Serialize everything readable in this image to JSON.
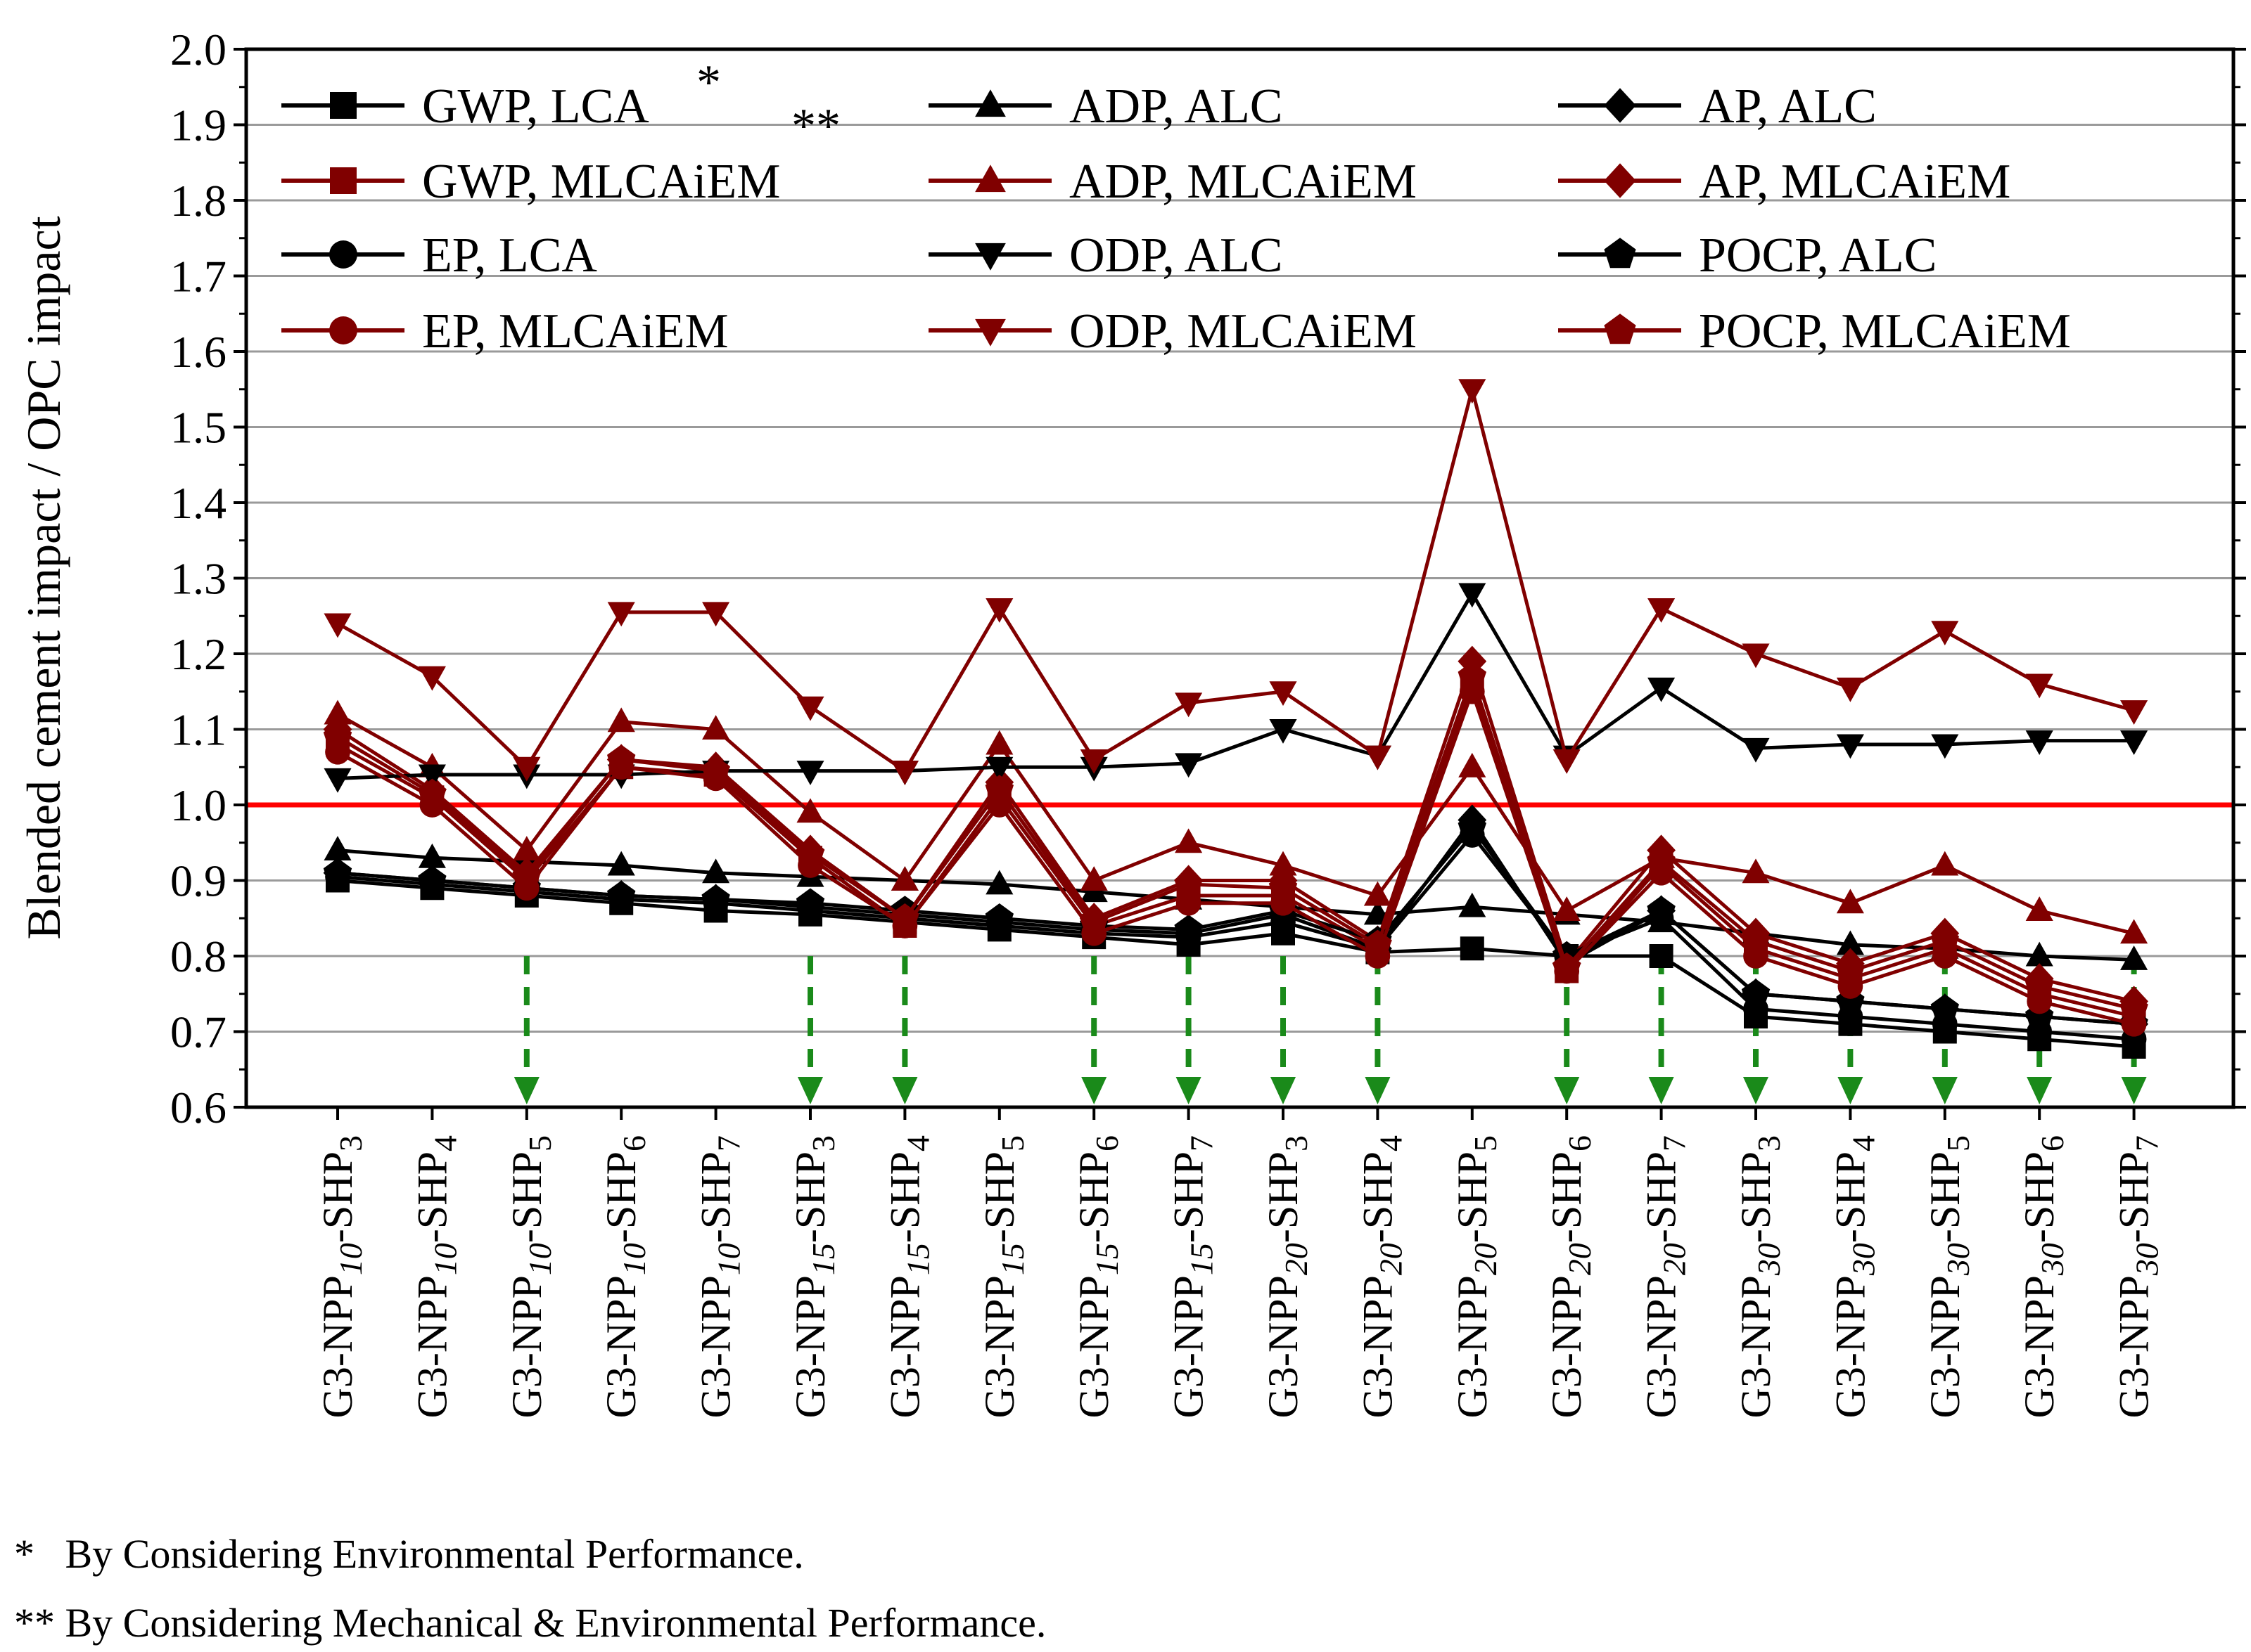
{
  "chart_data": {
    "type": "line",
    "ylabel": "Blended cement impact / OPC impact",
    "ylim": [
      0.6,
      2.0
    ],
    "ytick_step": 0.1,
    "grid": true,
    "reference_line": {
      "y": 1.0,
      "color": "#ff0000"
    },
    "categories": [
      {
        "pre": "G3-NPP",
        "sub1": "10",
        "mid": "-SHP",
        "sub2": "3"
      },
      {
        "pre": "G3-NPP",
        "sub1": "10",
        "mid": "-SHP",
        "sub2": "4"
      },
      {
        "pre": "G3-NPP",
        "sub1": "10",
        "mid": "-SHP",
        "sub2": "5"
      },
      {
        "pre": "G3-NPP",
        "sub1": "10",
        "mid": "-SHP",
        "sub2": "6"
      },
      {
        "pre": "G3-NPP",
        "sub1": "10",
        "mid": "-SHP",
        "sub2": "7"
      },
      {
        "pre": "G3-NPP",
        "sub1": "15",
        "mid": "-SHP",
        "sub2": "3"
      },
      {
        "pre": "G3-NPP",
        "sub1": "15",
        "mid": "-SHP",
        "sub2": "4"
      },
      {
        "pre": "G3-NPP",
        "sub1": "15",
        "mid": "-SHP",
        "sub2": "5"
      },
      {
        "pre": "G3-NPP",
        "sub1": "15",
        "mid": "-SHP",
        "sub2": "6"
      },
      {
        "pre": "G3-NPP",
        "sub1": "15",
        "mid": "-SHP",
        "sub2": "7"
      },
      {
        "pre": "G3-NPP",
        "sub1": "20",
        "mid": "-SHP",
        "sub2": "3"
      },
      {
        "pre": "G3-NPP",
        "sub1": "20",
        "mid": "-SHP",
        "sub2": "4"
      },
      {
        "pre": "G3-NPP",
        "sub1": "20",
        "mid": "-SHP",
        "sub2": "5"
      },
      {
        "pre": "G3-NPP",
        "sub1": "20",
        "mid": "-SHP",
        "sub2": "6"
      },
      {
        "pre": "G3-NPP",
        "sub1": "20",
        "mid": "-SHP",
        "sub2": "7"
      },
      {
        "pre": "G3-NPP",
        "sub1": "30",
        "mid": "-SHP",
        "sub2": "3"
      },
      {
        "pre": "G3-NPP",
        "sub1": "30",
        "mid": "-SHP",
        "sub2": "4"
      },
      {
        "pre": "G3-NPP",
        "sub1": "30",
        "mid": "-SHP",
        "sub2": "5"
      },
      {
        "pre": "G3-NPP",
        "sub1": "30",
        "mid": "-SHP",
        "sub2": "6"
      },
      {
        "pre": "G3-NPP",
        "sub1": "30",
        "mid": "-SHP",
        "sub2": "7"
      }
    ],
    "series": [
      {
        "name": "GWP, LCA",
        "color": "#000000",
        "marker": "square",
        "values": [
          0.9,
          0.89,
          0.88,
          0.87,
          0.86,
          0.855,
          0.845,
          0.835,
          0.825,
          0.815,
          0.83,
          0.805,
          0.81,
          0.8,
          0.8,
          0.72,
          0.71,
          0.7,
          0.69,
          0.68
        ]
      },
      {
        "name": "ADP, ALC",
        "color": "#000000",
        "marker": "triangle-up",
        "values": [
          0.94,
          0.93,
          0.925,
          0.92,
          0.91,
          0.905,
          0.9,
          0.895,
          0.885,
          0.875,
          0.865,
          0.855,
          0.865,
          0.855,
          0.845,
          0.83,
          0.815,
          0.81,
          0.8,
          0.795
        ]
      },
      {
        "name": "AP, ALC",
        "color": "#000000",
        "marker": "diamond",
        "values": [
          0.91,
          0.9,
          0.89,
          0.88,
          0.875,
          0.865,
          0.855,
          0.845,
          0.835,
          0.83,
          0.855,
          0.81,
          0.98,
          0.79,
          0.86,
          0.75,
          0.74,
          0.73,
          0.72,
          0.71
        ]
      },
      {
        "name": "GWP, MLCAiEM",
        "color": "#800000",
        "marker": "square",
        "values": [
          1.08,
          1.01,
          0.9,
          1.05,
          1.04,
          0.93,
          0.84,
          1.01,
          0.84,
          0.88,
          0.88,
          0.81,
          1.16,
          0.78,
          0.92,
          0.81,
          0.77,
          0.81,
          0.75,
          0.72
        ]
      },
      {
        "name": "ADP, MLCAiEM",
        "color": "#800000",
        "marker": "triangle-up",
        "values": [
          1.12,
          1.05,
          0.94,
          1.11,
          1.1,
          0.99,
          0.9,
          1.08,
          0.9,
          0.95,
          0.92,
          0.88,
          1.05,
          0.86,
          0.93,
          0.91,
          0.87,
          0.92,
          0.86,
          0.83
        ]
      },
      {
        "name": "AP, MLCAiEM",
        "color": "#800000",
        "marker": "diamond",
        "values": [
          1.1,
          1.02,
          0.91,
          1.06,
          1.05,
          0.94,
          0.85,
          1.03,
          0.85,
          0.9,
          0.9,
          0.82,
          1.19,
          0.79,
          0.94,
          0.83,
          0.79,
          0.83,
          0.77,
          0.74
        ]
      },
      {
        "name": "EP, LCA",
        "color": "#000000",
        "marker": "circle",
        "values": [
          0.905,
          0.895,
          0.885,
          0.875,
          0.87,
          0.86,
          0.85,
          0.84,
          0.83,
          0.825,
          0.845,
          0.81,
          0.96,
          0.8,
          0.85,
          0.73,
          0.72,
          0.71,
          0.7,
          0.69
        ]
      },
      {
        "name": "ODP, ALC",
        "color": "#000000",
        "marker": "triangle-down",
        "values": [
          1.035,
          1.04,
          1.04,
          1.04,
          1.045,
          1.045,
          1.045,
          1.05,
          1.05,
          1.055,
          1.1,
          1.065,
          1.28,
          1.065,
          1.155,
          1.075,
          1.08,
          1.08,
          1.085,
          1.085
        ]
      },
      {
        "name": "POCP, ALC",
        "color": "#000000",
        "marker": "pentagon",
        "values": [
          0.91,
          0.9,
          0.89,
          0.88,
          0.875,
          0.87,
          0.86,
          0.85,
          0.84,
          0.835,
          0.86,
          0.82,
          0.97,
          0.8,
          0.86,
          0.75,
          0.74,
          0.73,
          0.72,
          0.71
        ]
      },
      {
        "name": "EP, MLCAiEM",
        "color": "#800000",
        "marker": "circle",
        "values": [
          1.07,
          1.0,
          0.89,
          1.05,
          1.035,
          0.92,
          0.84,
          1.0,
          0.83,
          0.87,
          0.87,
          0.8,
          1.15,
          0.78,
          0.91,
          0.8,
          0.76,
          0.8,
          0.74,
          0.71
        ]
      },
      {
        "name": "ODP, MLCAiEM",
        "color": "#800000",
        "marker": "triangle-down",
        "values": [
          1.24,
          1.17,
          1.05,
          1.255,
          1.255,
          1.13,
          1.045,
          1.26,
          1.06,
          1.135,
          1.15,
          1.065,
          1.55,
          1.06,
          1.26,
          1.2,
          1.155,
          1.23,
          1.16,
          1.125
        ]
      },
      {
        "name": "POCP, MLCAiEM",
        "color": "#800000",
        "marker": "pentagon",
        "values": [
          1.09,
          1.015,
          0.905,
          1.06,
          1.045,
          0.935,
          0.85,
          1.02,
          0.845,
          0.895,
          0.89,
          0.815,
          1.17,
          0.785,
          0.925,
          0.82,
          0.78,
          0.82,
          0.76,
          0.73
        ]
      }
    ],
    "legend": {
      "placement": "top",
      "columns": 3,
      "superscripts": {
        "GWP, LCA": "*",
        "GWP, MLCAiEM": "**"
      }
    },
    "highlight_arrows": {
      "color": "#1a8a1a",
      "category_indices": [
        2,
        5,
        6,
        8,
        9,
        10,
        11,
        13,
        14,
        15,
        16,
        17,
        18,
        19
      ]
    },
    "footnotes": [
      "*   By Considering Environmental Performance.",
      "** By Considering Mechanical & Environmental Performance."
    ]
  }
}
